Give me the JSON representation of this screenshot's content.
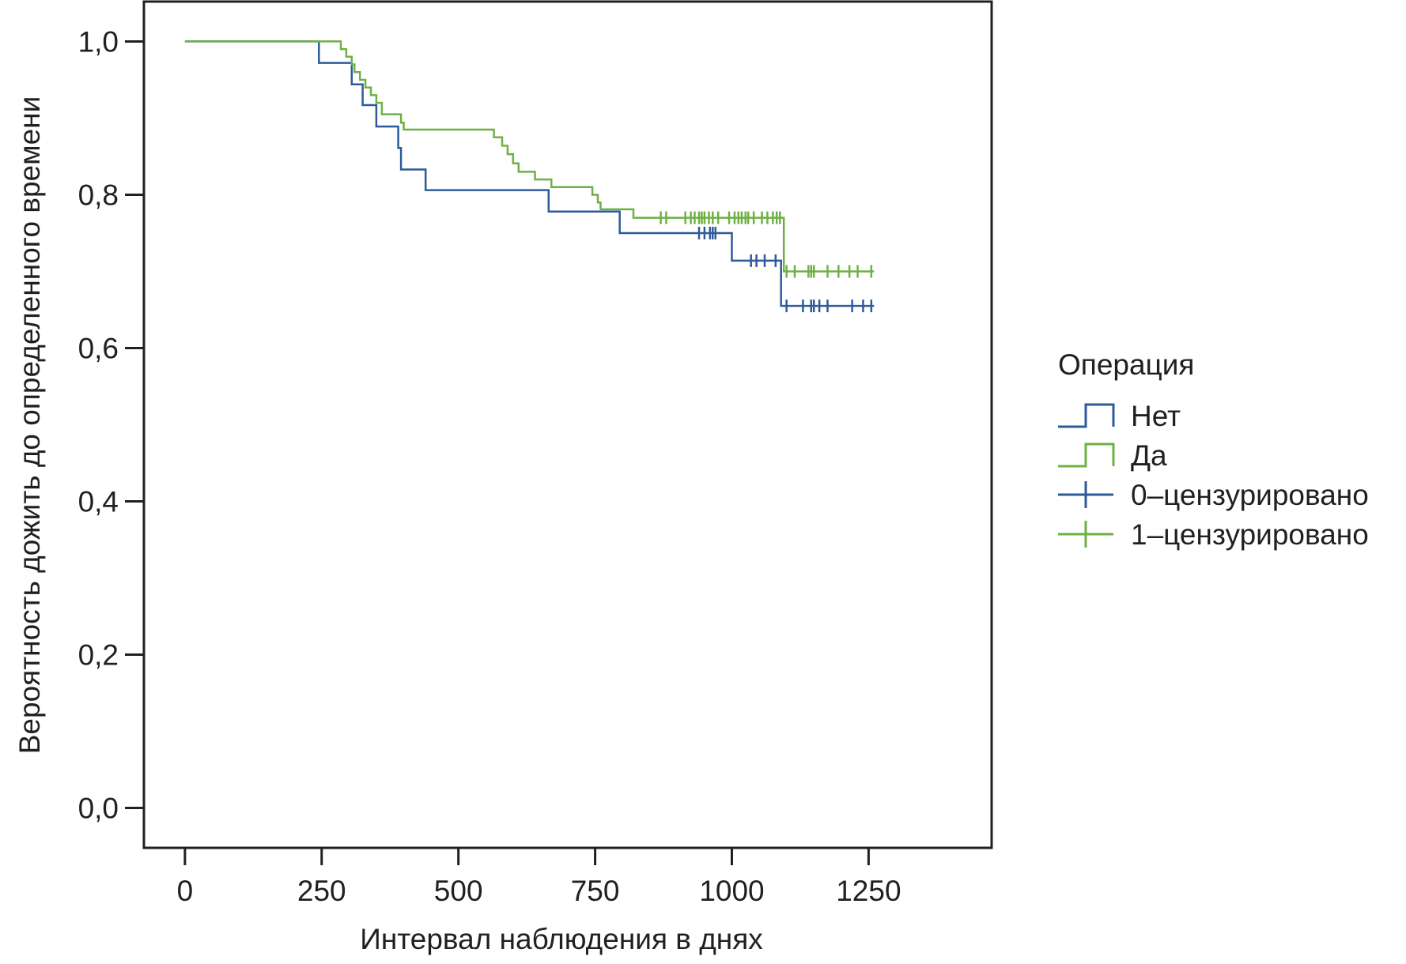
{
  "chart_data": {
    "type": "line",
    "subtype": "kaplan-meier step",
    "xlabel": "Интервал наблюдения в днях",
    "ylabel": "Вероятность дожить до определенного времени",
    "xlim": [
      -75,
      1475
    ],
    "ylim": [
      -0.052,
      1.052
    ],
    "x_ticks": [
      0,
      250,
      500,
      750,
      1000,
      1250
    ],
    "x_tick_labels": [
      "0",
      "250",
      "500",
      "750",
      "1000",
      "1250"
    ],
    "y_ticks": [
      0.0,
      0.2,
      0.4,
      0.6,
      0.8,
      1.0
    ],
    "y_tick_labels": [
      "0,0",
      "0,2",
      "0,4",
      "0,6",
      "0,8",
      "1,0"
    ],
    "grid": false,
    "legend": {
      "position": "right",
      "title": "Операция",
      "entries": [
        {
          "label": "Нет",
          "kind": "step",
          "color": "#2e5a9c"
        },
        {
          "label": "Да",
          "kind": "step",
          "color": "#6fb046"
        },
        {
          "label": "0–цензурировано",
          "kind": "censor",
          "color": "#2e5a9c"
        },
        {
          "label": "1–цензурировано",
          "kind": "censor",
          "color": "#6fb046"
        }
      ]
    },
    "series": [
      {
        "name": "Нет",
        "color": "#2e5a9c",
        "steps": [
          [
            0,
            1.0
          ],
          [
            245,
            0.972
          ],
          [
            305,
            0.944
          ],
          [
            325,
            0.917
          ],
          [
            350,
            0.889
          ],
          [
            390,
            0.861
          ],
          [
            395,
            0.833
          ],
          [
            440,
            0.806
          ],
          [
            665,
            0.778
          ],
          [
            795,
            0.75
          ],
          [
            1000,
            0.714
          ],
          [
            1090,
            0.655
          ],
          [
            1260,
            0.655
          ]
        ],
        "censored": [
          [
            940,
            0.75
          ],
          [
            950,
            0.75
          ],
          [
            960,
            0.75
          ],
          [
            965,
            0.75
          ],
          [
            970,
            0.75
          ],
          [
            1035,
            0.714
          ],
          [
            1045,
            0.714
          ],
          [
            1060,
            0.714
          ],
          [
            1080,
            0.714
          ],
          [
            1100,
            0.655
          ],
          [
            1130,
            0.655
          ],
          [
            1145,
            0.655
          ],
          [
            1150,
            0.655
          ],
          [
            1160,
            0.655
          ],
          [
            1175,
            0.655
          ],
          [
            1220,
            0.655
          ],
          [
            1240,
            0.655
          ],
          [
            1255,
            0.655
          ]
        ]
      },
      {
        "name": "Да",
        "color": "#6fb046",
        "steps": [
          [
            0,
            1.0
          ],
          [
            285,
            0.99
          ],
          [
            295,
            0.98
          ],
          [
            305,
            0.97
          ],
          [
            310,
            0.96
          ],
          [
            320,
            0.95
          ],
          [
            330,
            0.94
          ],
          [
            340,
            0.93
          ],
          [
            350,
            0.92
          ],
          [
            360,
            0.905
          ],
          [
            395,
            0.894
          ],
          [
            400,
            0.885
          ],
          [
            565,
            0.875
          ],
          [
            580,
            0.864
          ],
          [
            590,
            0.853
          ],
          [
            600,
            0.841
          ],
          [
            610,
            0.83
          ],
          [
            640,
            0.82
          ],
          [
            670,
            0.81
          ],
          [
            745,
            0.8
          ],
          [
            755,
            0.79
          ],
          [
            760,
            0.781
          ],
          [
            820,
            0.77
          ],
          [
            1095,
            0.7
          ],
          [
            1260,
            0.7
          ]
        ],
        "censored": [
          [
            870,
            0.77
          ],
          [
            880,
            0.77
          ],
          [
            915,
            0.77
          ],
          [
            925,
            0.77
          ],
          [
            932,
            0.77
          ],
          [
            940,
            0.77
          ],
          [
            945,
            0.77
          ],
          [
            950,
            0.77
          ],
          [
            958,
            0.77
          ],
          [
            965,
            0.77
          ],
          [
            975,
            0.77
          ],
          [
            995,
            0.77
          ],
          [
            1005,
            0.77
          ],
          [
            1012,
            0.77
          ],
          [
            1018,
            0.77
          ],
          [
            1025,
            0.77
          ],
          [
            1030,
            0.77
          ],
          [
            1040,
            0.77
          ],
          [
            1055,
            0.77
          ],
          [
            1065,
            0.77
          ],
          [
            1075,
            0.77
          ],
          [
            1082,
            0.77
          ],
          [
            1088,
            0.77
          ],
          [
            1100,
            0.7
          ],
          [
            1115,
            0.7
          ],
          [
            1140,
            0.7
          ],
          [
            1145,
            0.7
          ],
          [
            1150,
            0.7
          ],
          [
            1175,
            0.7
          ],
          [
            1195,
            0.7
          ],
          [
            1215,
            0.7
          ],
          [
            1230,
            0.7
          ],
          [
            1255,
            0.7
          ]
        ]
      }
    ]
  }
}
